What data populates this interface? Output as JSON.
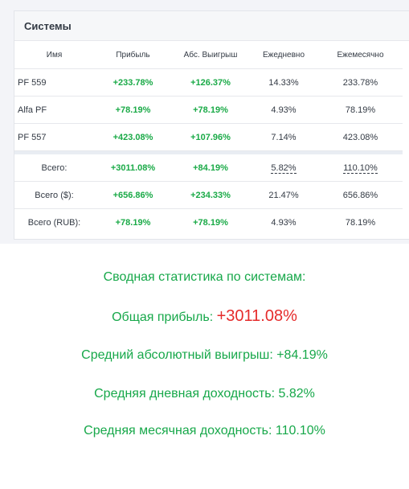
{
  "card": {
    "title": "Системы"
  },
  "table": {
    "headers": [
      "Имя",
      "Прибыль",
      "Абс. Выигрыш",
      "Ежедневно",
      "Ежемесячно"
    ],
    "rows": [
      {
        "name": "PF 559",
        "profit": "+233.78%",
        "abs_win": "+126.37%",
        "daily": "14.33%",
        "monthly": "233.78%"
      },
      {
        "name": "Alfa PF",
        "profit": "+78.19%",
        "abs_win": "+78.19%",
        "daily": "4.93%",
        "monthly": "78.19%"
      },
      {
        "name": "PF 557",
        "profit": "+423.08%",
        "abs_win": "+107.96%",
        "daily": "7.14%",
        "monthly": "423.08%"
      }
    ],
    "totals": [
      {
        "label": "Всего:",
        "profit": "+3011.08%",
        "abs_win": "+84.19%",
        "daily": "5.82%",
        "monthly": "110.10%"
      },
      {
        "label": "Всего ($):",
        "profit": "+656.86%",
        "abs_win": "+234.33%",
        "daily": "21.47%",
        "monthly": "656.86%"
      },
      {
        "label": "Всего (RUB):",
        "profit": "+78.19%",
        "abs_win": "+78.19%",
        "daily": "4.93%",
        "monthly": "78.19%"
      }
    ]
  },
  "summary": {
    "heading": "Сводная статистика по системам:",
    "total_profit_label": "Общая прибыль: ",
    "total_profit_value": "+3011.08%",
    "avg_abs_win": "Средний абсолютный выигрыш: +84.19%",
    "avg_daily": "Средняя дневная доходность: 5.82%",
    "avg_monthly": "Средняя месячная доходность: 110.10%"
  },
  "colors": {
    "positive": "#1aaa47",
    "summary_green": "#17a84a",
    "profit_red": "#e52b2b"
  }
}
